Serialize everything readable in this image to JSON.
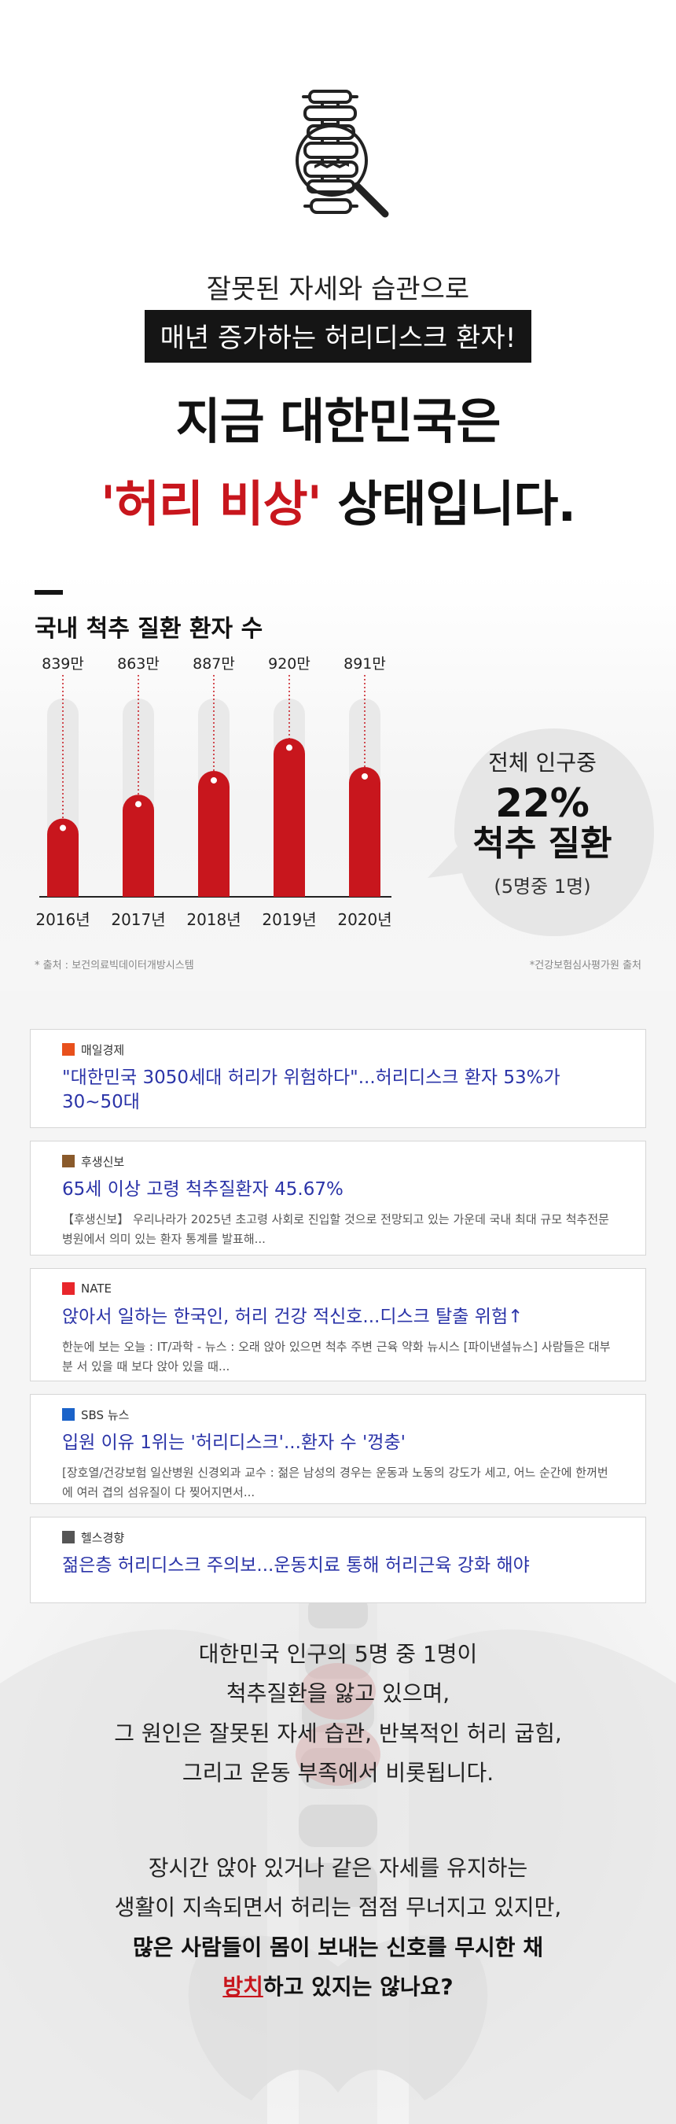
{
  "hero": {
    "icon": "spine-magnifier-icon",
    "line1": "잘못된 자세와 습관으로",
    "tag": "매년 증가하는 허리디스크 환자!",
    "title_line1": "지금 대한민국은",
    "title_accent": "'허리 비상'",
    "title_rest": " 상태입니다."
  },
  "chart_section": {
    "title": "국내 척추 질환 환자 수",
    "source_left": "* 출처 : 보건의료빅데이터개방시스템",
    "source_right": "*건강보험심사평가원 출처",
    "bubble": {
      "line1": "전체 인구중",
      "line2": "22%",
      "line3": "척추 질환",
      "line4": "(5명중 1명)"
    }
  },
  "chart_data": {
    "type": "bar",
    "title": "국내 척추 질환 환자 수",
    "categories": [
      "2016년",
      "2017년",
      "2018년",
      "2019년",
      "2020년"
    ],
    "value_labels": [
      "839만",
      "863만",
      "887만",
      "920만",
      "891만"
    ],
    "values": [
      839,
      863,
      887,
      920,
      891
    ],
    "series": [
      {
        "values": [
          839,
          863,
          887,
          920,
          891
        ]
      }
    ],
    "colors": {
      "bar": "#c8161d",
      "track": "#e9e9e9"
    }
  },
  "news": [
    {
      "publisher": "매일경제",
      "logo": "mk-logo-icon",
      "logo_color": "#e8501c",
      "headline": "\"대한민국 3050세대 허리가 위험하다\"...허리디스크 환자 53%가 30~50대",
      "snippet": ""
    },
    {
      "publisher": "후생신보",
      "logo": "husaeng-logo-icon",
      "logo_color": "#8a5a2b",
      "headline": "65세 이상 고령 척추질환자 45.67%",
      "snippet": "【후생신보】 우리나라가 2025년 초고령 사회로 진입할 것으로 전망되고 있는 가운데 국내 최대 규모 척추전문병원에서 의미 있는 환자 통계를 발표해..."
    },
    {
      "publisher": "NATE",
      "logo": "nate-logo-icon",
      "logo_color": "#e8262b",
      "headline": "앉아서 일하는 한국인, 허리 건강 적신호...디스크 탈출 위험↑",
      "snippet": "한눈에 보는 오늘 : IT/과학 - 뉴스 : 오래 앉아 있으면 척추 주변 근육 약화 뉴시스 [파이낸셜뉴스] 사람들은 대부분 서 있을 때 보다 앉아 있을 때..."
    },
    {
      "publisher": "SBS 뉴스",
      "logo": "sbs-logo-icon",
      "logo_color": "#1b63c9",
      "headline": "입원 이유 1위는 '허리디스크'...환자 수 '껑충'",
      "snippet": "[장호열/건강보험 일산병원 신경외과 교수 : 젊은 남성의 경우는 운동과 노동의 강도가 세고, 어느 순간에 한꺼번에 여러 겹의 섬유질이 다 찢어지면서..."
    },
    {
      "publisher": "헬스경향",
      "logo": "health-logo-icon",
      "logo_color": "#555555",
      "headline": "젊은층 허리디스크 주의보...운동치료 통해 허리근육 강화 해야",
      "snippet": ""
    }
  ],
  "body": {
    "p1_l1": "대한민국 인구의 5명 중 1명이",
    "p1_l2": "척추질환을 앓고 있으며,",
    "p1_l3": "그 원인은 잘못된 자세 습관, 반복적인 허리 굽힘,",
    "p1_l4": "그리고 운동 부족에서 비롯됩니다.",
    "p2_l1": "장시간 앉아 있거나 같은 자세를 유지하는",
    "p2_l2": "생활이 지속되면서 허리는 점점 무너지고 있지만,",
    "p2_l3": "많은 사람들이 몸이 보내는 신호를 무시한 채",
    "p2_l4_red": "방치",
    "p2_l4_rest": "하고 있지는 않나요?"
  }
}
